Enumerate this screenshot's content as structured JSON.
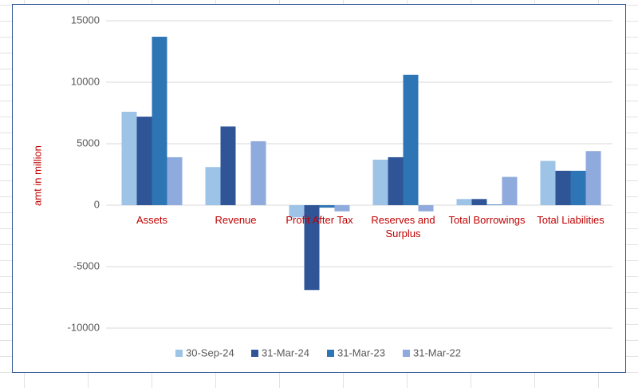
{
  "chart_data": {
    "type": "bar",
    "y_label": "amt in million",
    "categories": [
      "Assets",
      "Revenue",
      "Profit After Tax",
      "Reserves and Surplus",
      "Total Borrowings",
      "Total Liabilities"
    ],
    "series": [
      {
        "name": "30-Sep-24",
        "color": "#9dc3e6",
        "values": [
          7600,
          3100,
          -1000,
          3700,
          500,
          3600
        ]
      },
      {
        "name": "31-Mar-24",
        "color": "#2f5597",
        "values": [
          7200,
          6400,
          -6900,
          3900,
          500,
          2800
        ]
      },
      {
        "name": "31-Mar-23",
        "color": "#2e75b6",
        "values": [
          13700,
          null,
          -200,
          10600,
          50,
          2800
        ]
      },
      {
        "name": "31-Mar-22",
        "color": "#8faadc",
        "values": [
          3900,
          5200,
          -500,
          -500,
          2300,
          4400
        ]
      }
    ],
    "ylim": [
      -10000,
      15000
    ],
    "yticks": [
      -10000,
      -5000,
      0,
      5000,
      10000,
      15000
    ],
    "grid": true,
    "legend": "bottom"
  }
}
